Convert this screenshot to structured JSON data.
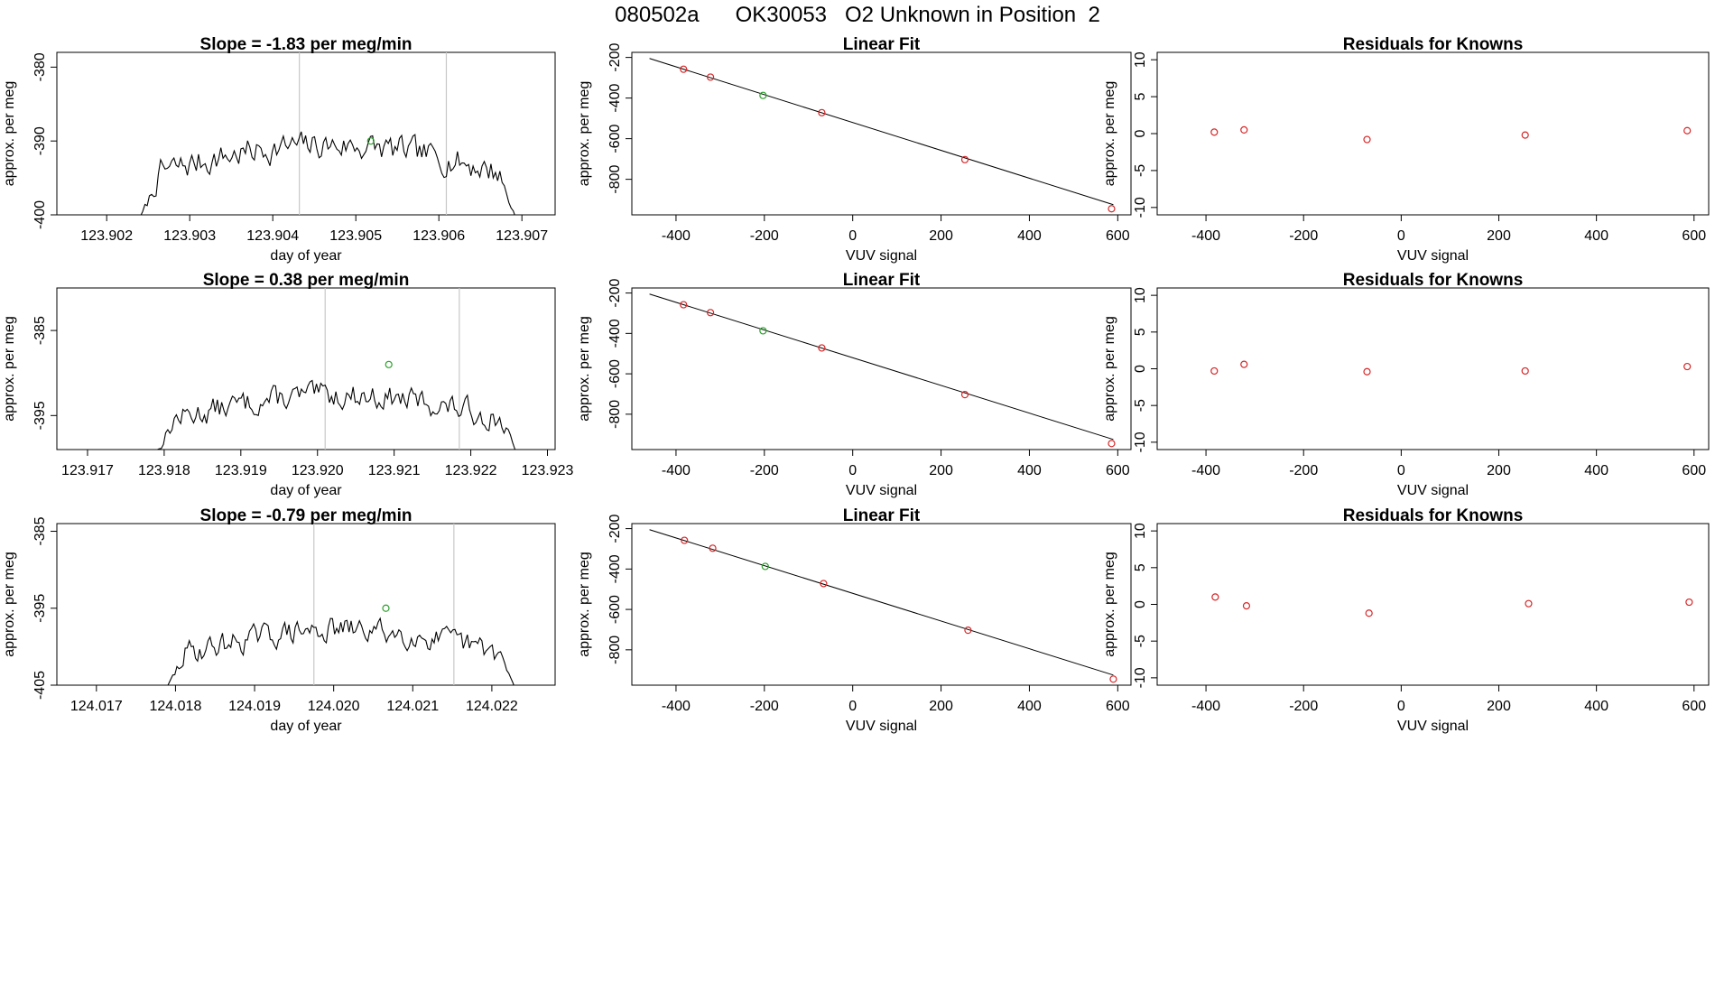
{
  "page_title": "080502a      OK30053   O2 Unknown in Position  2",
  "colors": {
    "known": "#d62728",
    "unknown": "#2ca02c",
    "line": "#000000",
    "guide": "#c8c8c8"
  },
  "rows": [
    {
      "time_series": {
        "title": "Slope =  -1.83  per meg/min",
        "xlabel": "day of year",
        "ylabel": "approx. per meg",
        "xlim": [
          123.9014,
          123.9074
        ],
        "ylim": [
          -400,
          -378
        ],
        "xticks": [
          123.902,
          123.903,
          123.904,
          123.905,
          123.906,
          123.907
        ],
        "xtick_labels": [
          "123.902",
          "123.903",
          "123.904",
          "123.905",
          "123.906",
          "123.907"
        ],
        "yticks": [
          -400,
          -390,
          -380
        ],
        "ytick_labels": [
          "-400",
          "-390",
          "-380"
        ],
        "vlines": [
          123.90432,
          123.90609
        ],
        "start": 123.90238,
        "end": 123.90695,
        "level": -389.5,
        "amp": 3.0,
        "seed": 7,
        "marker": [
          123.90518,
          -390.0
        ]
      },
      "linear_fit": {
        "title": "Linear Fit",
        "xlabel": "VUV signal",
        "ylabel": "approx. per meg",
        "xlim": [
          -500,
          630
        ],
        "ylim": [
          -975,
          -175
        ],
        "xticks": [
          -400,
          -200,
          0,
          200,
          400,
          600
        ],
        "xtick_labels": [
          "-400",
          "-200",
          "0",
          "200",
          "400",
          "600"
        ],
        "yticks": [
          -800,
          -600,
          -400,
          -200
        ],
        "ytick_labels": [
          "-800",
          "-600",
          "-400",
          "-200"
        ],
        "line": [
          [
            -460,
            -205
          ],
          [
            590,
            -925
          ]
        ],
        "knowns": [
          [
            -383,
            -258
          ],
          [
            -322,
            -297
          ],
          [
            -70,
            -472
          ],
          [
            254,
            -703
          ],
          [
            586,
            -945
          ]
        ],
        "unknowns": [
          [
            -203,
            -387
          ]
        ]
      },
      "residuals": {
        "title": "Residuals for Knowns",
        "xlabel": "VUV signal",
        "ylabel": "approx. per meg",
        "xlim": [
          -500,
          630
        ],
        "ylim": [
          -11,
          11
        ],
        "xticks": [
          -400,
          -200,
          0,
          200,
          400,
          600
        ],
        "xtick_labels": [
          "-400",
          "-200",
          "0",
          "200",
          "400",
          "600"
        ],
        "yticks": [
          -10,
          -5,
          0,
          5,
          10
        ],
        "ytick_labels": [
          "-10",
          "-5",
          "0",
          "5",
          "10"
        ],
        "points": [
          [
            -383,
            0.2
          ],
          [
            -322,
            0.5
          ],
          [
            -70,
            -0.8
          ],
          [
            254,
            -0.2
          ],
          [
            586,
            0.4
          ]
        ]
      }
    },
    {
      "time_series": {
        "title": "Slope =  0.38  per meg/min",
        "xlabel": "day of year",
        "ylabel": "approx. per meg",
        "xlim": [
          123.9166,
          123.9231
        ],
        "ylim": [
          -399,
          -380
        ],
        "xticks": [
          123.917,
          123.918,
          123.919,
          123.92,
          123.921,
          123.922,
          123.923
        ],
        "xtick_labels": [
          "123.917",
          "123.918",
          "123.919",
          "123.920",
          "123.921",
          "123.922",
          "123.923"
        ],
        "yticks": [
          -395,
          -385
        ],
        "ytick_labels": [
          "-395",
          "-385"
        ],
        "vlines": [
          123.9201,
          123.92185
        ],
        "start": 123.91785,
        "end": 123.92263,
        "level": -390.5,
        "amp": 2.3,
        "seed": 13,
        "marker": [
          123.92093,
          -389.0
        ]
      },
      "linear_fit": {
        "title": "Linear Fit",
        "xlabel": "VUV signal",
        "ylabel": "approx. per meg",
        "xlim": [
          -500,
          630
        ],
        "ylim": [
          -975,
          -175
        ],
        "xticks": [
          -400,
          -200,
          0,
          200,
          400,
          600
        ],
        "xtick_labels": [
          "-400",
          "-200",
          "0",
          "200",
          "400",
          "600"
        ],
        "yticks": [
          -800,
          -600,
          -400,
          -200
        ],
        "ytick_labels": [
          "-800",
          "-600",
          "-400",
          "-200"
        ],
        "line": [
          [
            -460,
            -205
          ],
          [
            590,
            -925
          ]
        ],
        "knowns": [
          [
            -383,
            -258
          ],
          [
            -322,
            -297
          ],
          [
            -70,
            -472
          ],
          [
            254,
            -703
          ],
          [
            586,
            -945
          ]
        ],
        "unknowns": [
          [
            -203,
            -387
          ]
        ]
      },
      "residuals": {
        "title": "Residuals for Knowns",
        "xlabel": "VUV signal",
        "ylabel": "approx. per meg",
        "xlim": [
          -500,
          630
        ],
        "ylim": [
          -11,
          11
        ],
        "xticks": [
          -400,
          -200,
          0,
          200,
          400,
          600
        ],
        "xtick_labels": [
          "-400",
          "-200",
          "0",
          "200",
          "400",
          "600"
        ],
        "yticks": [
          -10,
          -5,
          0,
          5,
          10
        ],
        "ytick_labels": [
          "-10",
          "-5",
          "0",
          "5",
          "10"
        ],
        "points": [
          [
            -383,
            -0.3
          ],
          [
            -322,
            0.6
          ],
          [
            -70,
            -0.4
          ],
          [
            254,
            -0.3
          ],
          [
            586,
            0.3
          ]
        ]
      }
    },
    {
      "time_series": {
        "title": "Slope =  -0.79  per meg/min",
        "xlabel": "day of year",
        "ylabel": "approx. per meg",
        "xlim": [
          124.0165,
          124.0228
        ],
        "ylim": [
          -405,
          -384
        ],
        "xticks": [
          124.017,
          124.018,
          124.019,
          124.02,
          124.021,
          124.022
        ],
        "xtick_labels": [
          "124.017",
          "124.018",
          "124.019",
          "124.020",
          "124.021",
          "124.022"
        ],
        "yticks": [
          -405,
          -395,
          -385
        ],
        "ytick_labels": [
          "-405",
          "-395",
          "-385"
        ],
        "vlines": [
          124.01975,
          124.02152
        ],
        "start": 124.01786,
        "end": 124.02232,
        "level": -396.0,
        "amp": 2.5,
        "seed": 29,
        "marker": [
          124.02066,
          -395.0
        ]
      },
      "linear_fit": {
        "title": "Linear Fit",
        "xlabel": "VUV signal",
        "ylabel": "approx. per meg",
        "xlim": [
          -500,
          630
        ],
        "ylim": [
          -975,
          -175
        ],
        "xticks": [
          -400,
          -200,
          0,
          200,
          400,
          600
        ],
        "xtick_labels": [
          "-400",
          "-200",
          "0",
          "200",
          "400",
          "600"
        ],
        "yticks": [
          -800,
          -600,
          -400,
          -200
        ],
        "ytick_labels": [
          "-800",
          "-600",
          "-400",
          "-200"
        ],
        "line": [
          [
            -460,
            -205
          ],
          [
            590,
            -925
          ]
        ],
        "knowns": [
          [
            -381,
            -258
          ],
          [
            -317,
            -297
          ],
          [
            -66,
            -472
          ],
          [
            261,
            -703
          ],
          [
            590,
            -945
          ]
        ],
        "unknowns": [
          [
            -198,
            -387
          ]
        ]
      },
      "residuals": {
        "title": "Residuals for Knowns",
        "xlabel": "VUV signal",
        "ylabel": "approx. per meg",
        "xlim": [
          -500,
          630
        ],
        "ylim": [
          -11,
          11
        ],
        "xticks": [
          -400,
          -200,
          0,
          200,
          400,
          600
        ],
        "xtick_labels": [
          "-400",
          "-200",
          "0",
          "200",
          "400",
          "600"
        ],
        "yticks": [
          -10,
          -5,
          0,
          5,
          10
        ],
        "ytick_labels": [
          "-10",
          "-5",
          "0",
          "5",
          "10"
        ],
        "points": [
          [
            -381,
            1.0
          ],
          [
            -317,
            -0.2
          ],
          [
            -66,
            -1.2
          ],
          [
            261,
            0.1
          ],
          [
            590,
            0.3
          ]
        ]
      }
    }
  ]
}
